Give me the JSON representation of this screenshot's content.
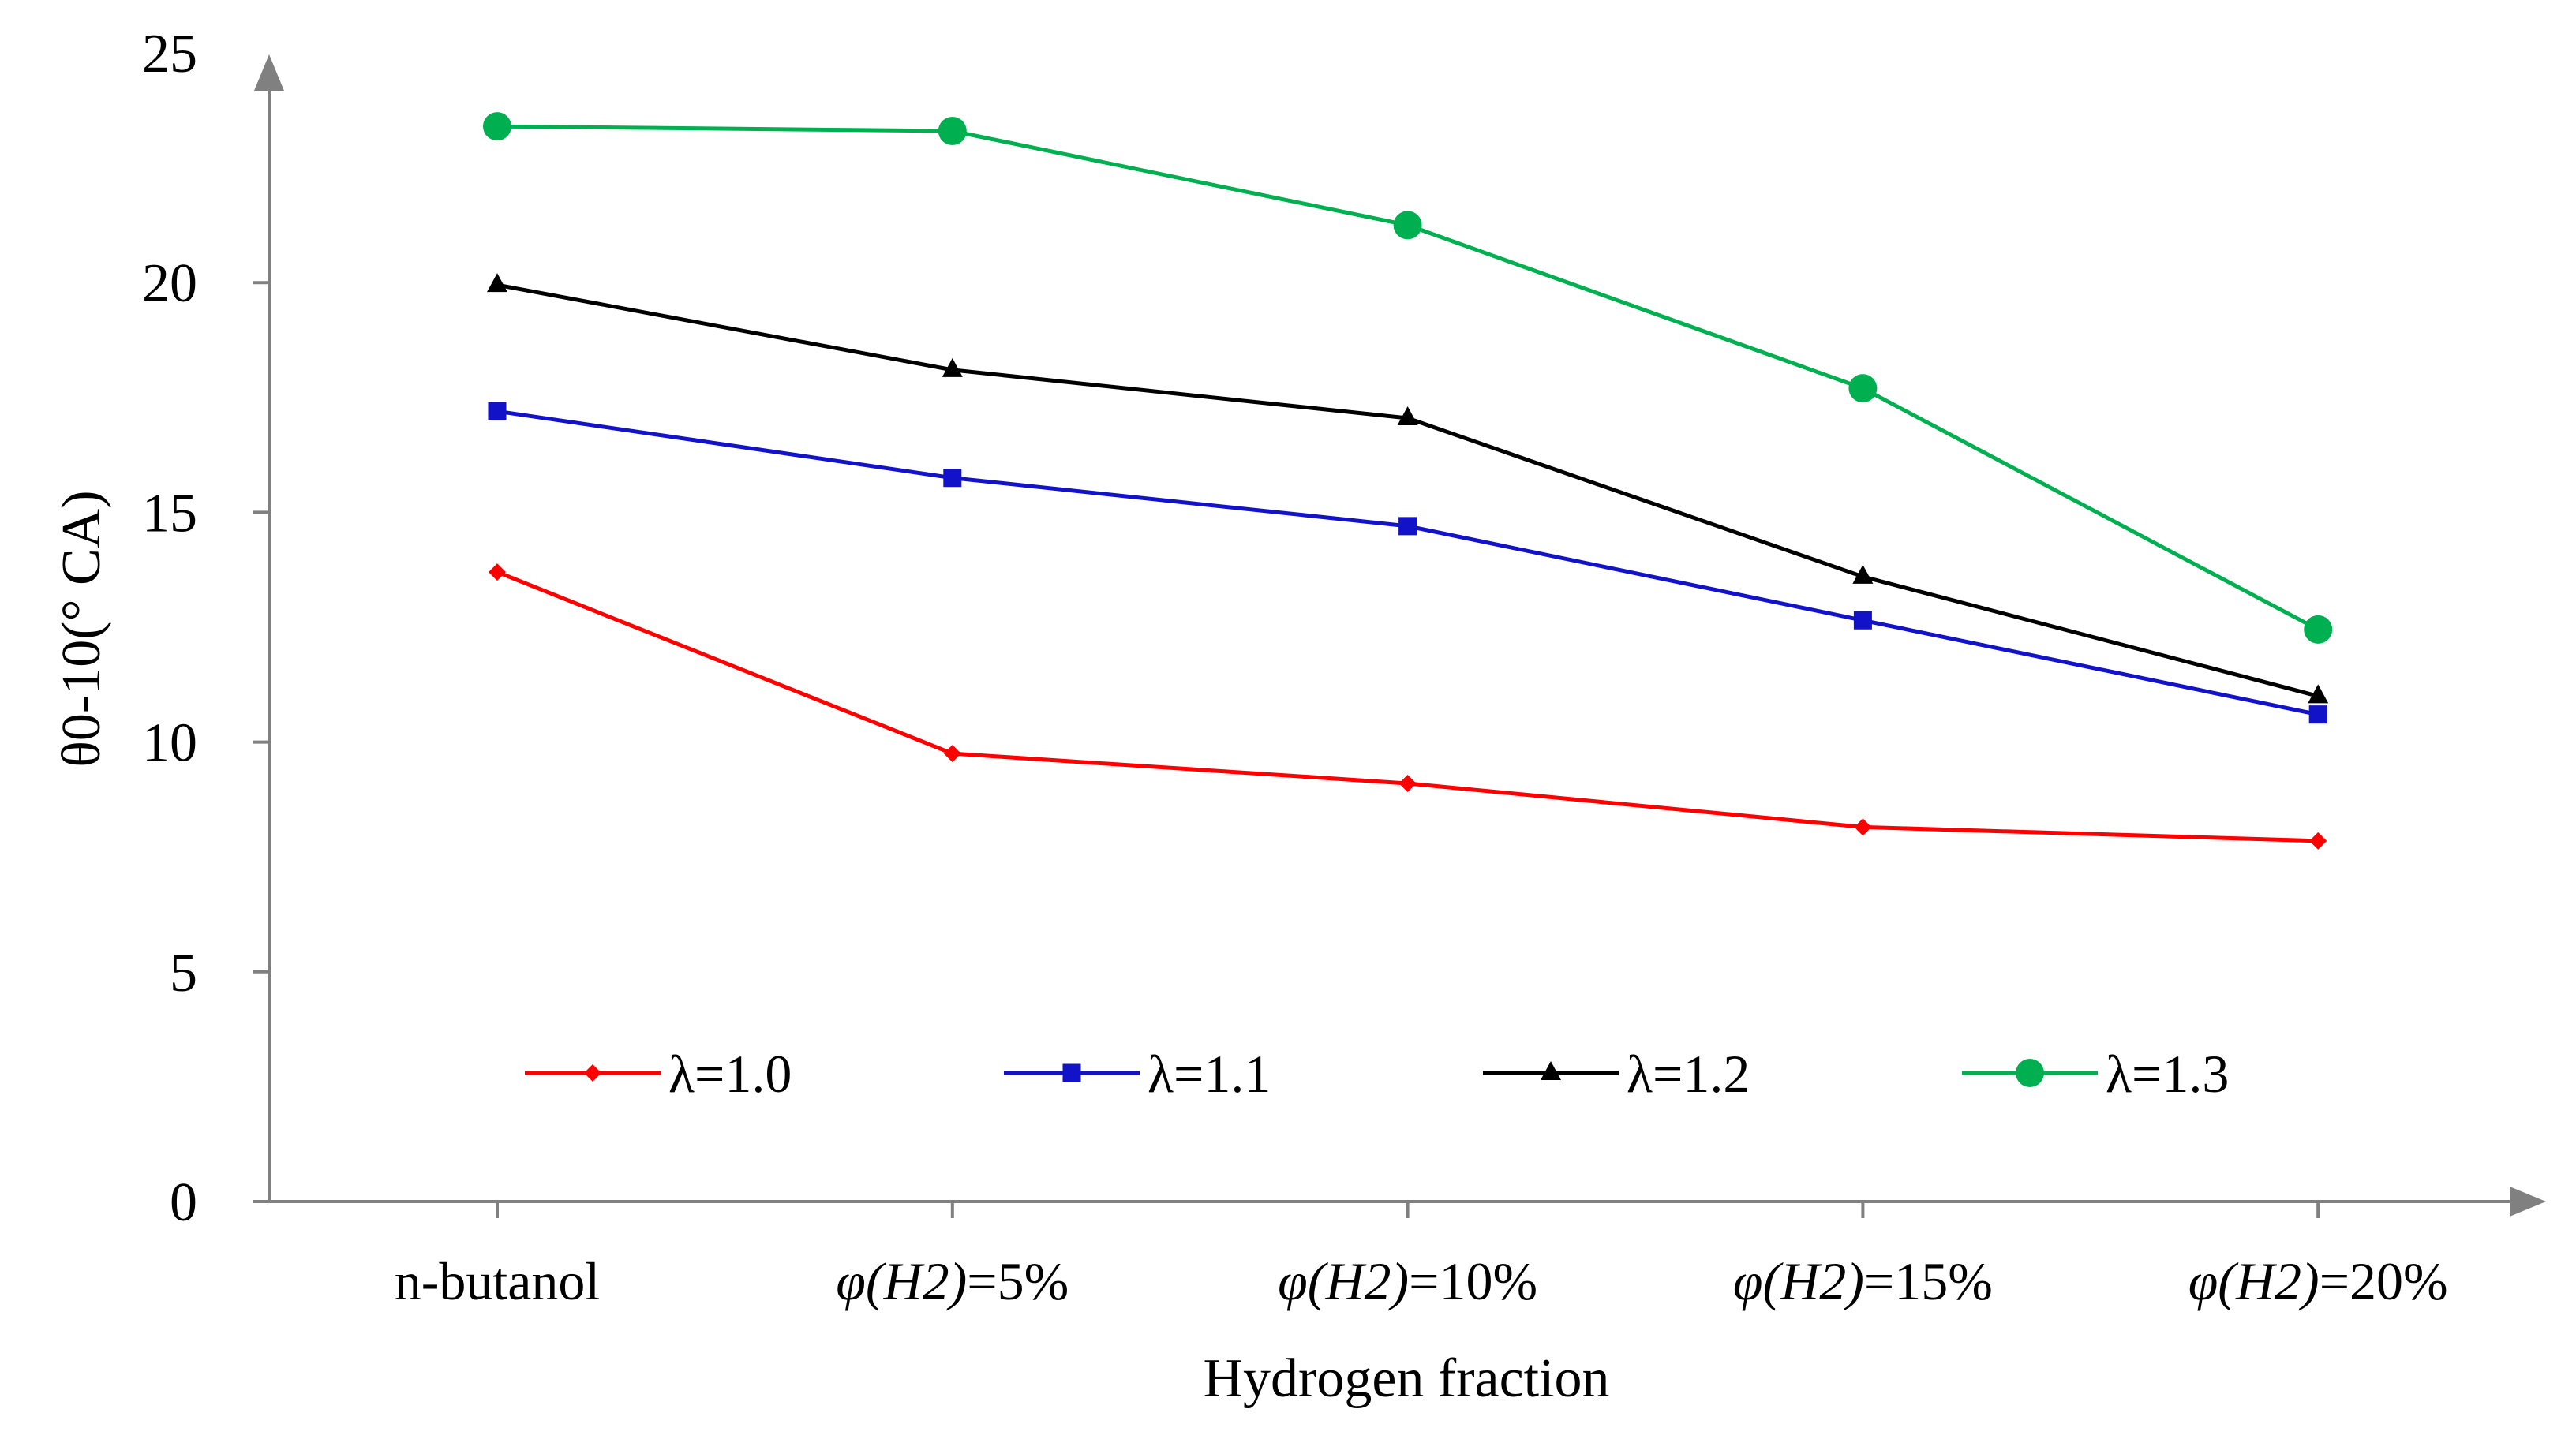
{
  "chart_data": {
    "type": "line",
    "title": "",
    "xlabel": "Hydrogen fraction",
    "ylabel": "θ0-10(° CA)",
    "categories": [
      "n-butanol",
      "φ(H2)=5%",
      "φ(H2)=10%",
      "φ(H2)=15%",
      "φ(H2)=20%"
    ],
    "ylim": [
      0,
      25
    ],
    "yticks": [
      0,
      5,
      10,
      15,
      20,
      25
    ],
    "grid": false,
    "legend_position": "bottom-inside",
    "axis_color": "#808080",
    "series": [
      {
        "name": "λ=1.0",
        "color": "#FF0000",
        "marker": "diamond",
        "values": [
          13.7,
          9.75,
          9.1,
          8.15,
          7.85
        ]
      },
      {
        "name": "λ=1.1",
        "color": "#1212C8",
        "marker": "square",
        "values": [
          17.2,
          15.75,
          14.7,
          12.65,
          10.6
        ]
      },
      {
        "name": "λ=1.2",
        "color": "#000000",
        "marker": "triangle",
        "values": [
          19.95,
          18.1,
          17.05,
          13.6,
          11.0
        ]
      },
      {
        "name": "λ=1.3",
        "color": "#00B050",
        "marker": "circle",
        "values": [
          23.4,
          23.3,
          21.25,
          17.7,
          12.45
        ]
      }
    ]
  }
}
